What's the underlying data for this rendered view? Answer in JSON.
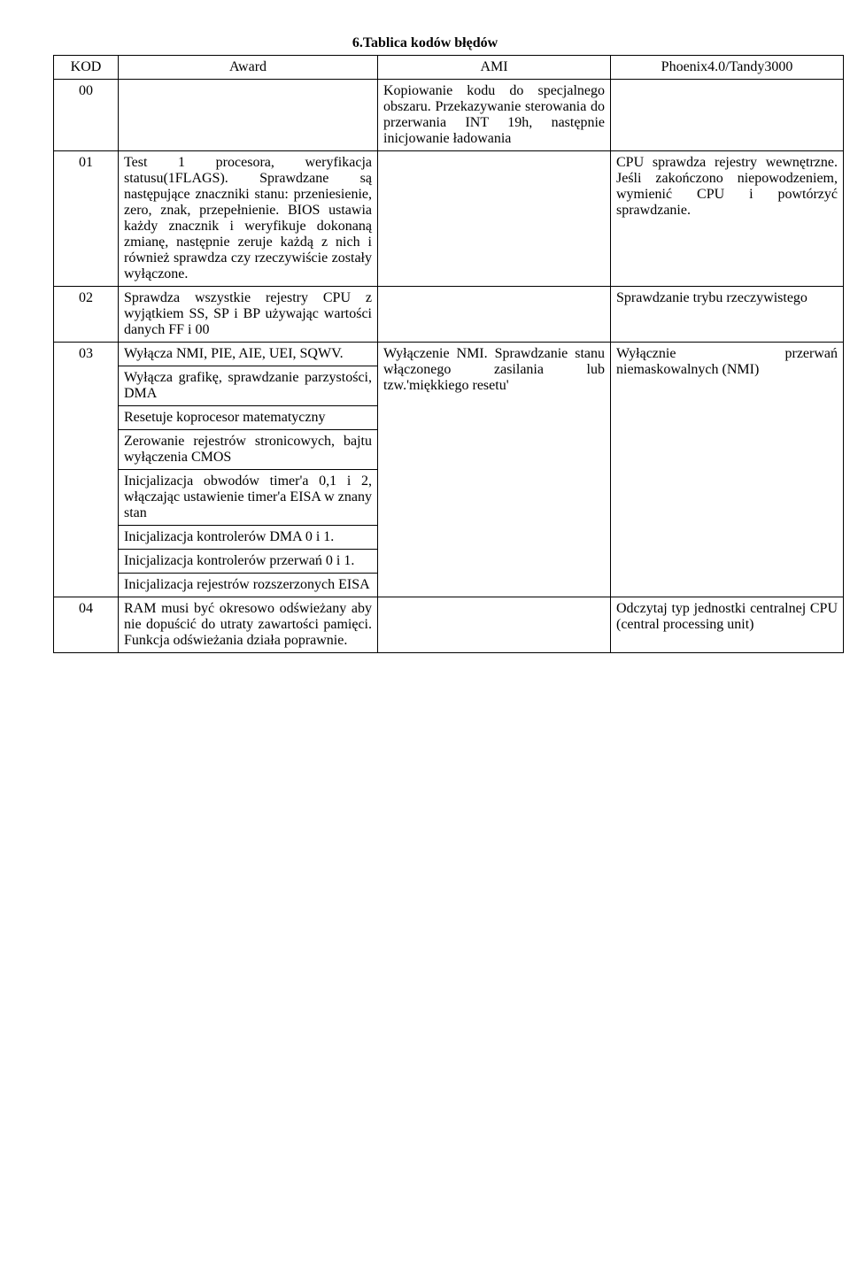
{
  "title": "6.Tablica kodów błędów",
  "headers": {
    "kod": "KOD",
    "award": "Award",
    "ami": "AMI",
    "phoenix": "Phoenix4.0/Tandy3000"
  },
  "rows": {
    "r00": {
      "kod": "00",
      "award": "",
      "ami": "Kopiowanie kodu do specjalnego obszaru. Przekazywanie sterowania do przerwania INT 19h, następnie inicjowanie ładowania",
      "phoenix": ""
    },
    "r01": {
      "kod": "01",
      "award": "Test 1 procesora, weryfikacja statusu(1FLAGS). Sprawdzane są następujące znaczniki stanu: przeniesienie, zero, znak, przepełnienie.\nBIOS ustawia każdy znacznik i weryfikuje dokonaną zmianę, następnie zeruje każdą z nich i również sprawdza czy rzeczywiście zostały wyłączone.",
      "ami": "",
      "phoenix": "CPU sprawdza rejestry wewnętrzne. Jeśli zakończono niepowodzeniem, wymienić CPU i powtórzyć sprawdzanie."
    },
    "r02": {
      "kod": "02",
      "award": "Sprawdza wszystkie rejestry CPU z wyjątkiem SS, SP i BP używając wartości danych FF i 00",
      "ami": "",
      "phoenix": "Sprawdzanie trybu rzeczywistego"
    },
    "r03": {
      "kod": "03",
      "award_sub": [
        "Wyłącza NMI, PIE, AIE, UEI, SQWV.",
        "Wyłącza grafikę, sprawdzanie parzystości, DMA",
        "Resetuje koprocesor matematyczny",
        "Zerowanie rejestrów stronicowych, bajtu wyłączenia CMOS",
        "Inicjalizacja obwodów timer'a 0,1 i 2, włączając ustawienie timer'a EISA w znany stan",
        "Inicjalizacja kontrolerów DMA 0 i 1.",
        "Inicjalizacja kontrolerów przerwań 0 i 1.",
        "Inicjalizacja rejestrów rozszerzonych EISA"
      ],
      "ami": "Wyłączenie NMI. Sprawdzanie stanu włączonego zasilania lub tzw.'miękkiego resetu'",
      "phoenix": "Wyłącznie przerwań niemaskowalnych (NMI)"
    },
    "r04": {
      "kod": "04",
      "award": "RAM musi być okresowo odświeżany aby nie dopuścić do utraty zawartości pamięci. Funkcja odświeżania działa poprawnie.",
      "ami": "",
      "phoenix": "Odczytaj typ jednostki centralnej CPU (central processing unit)"
    }
  }
}
